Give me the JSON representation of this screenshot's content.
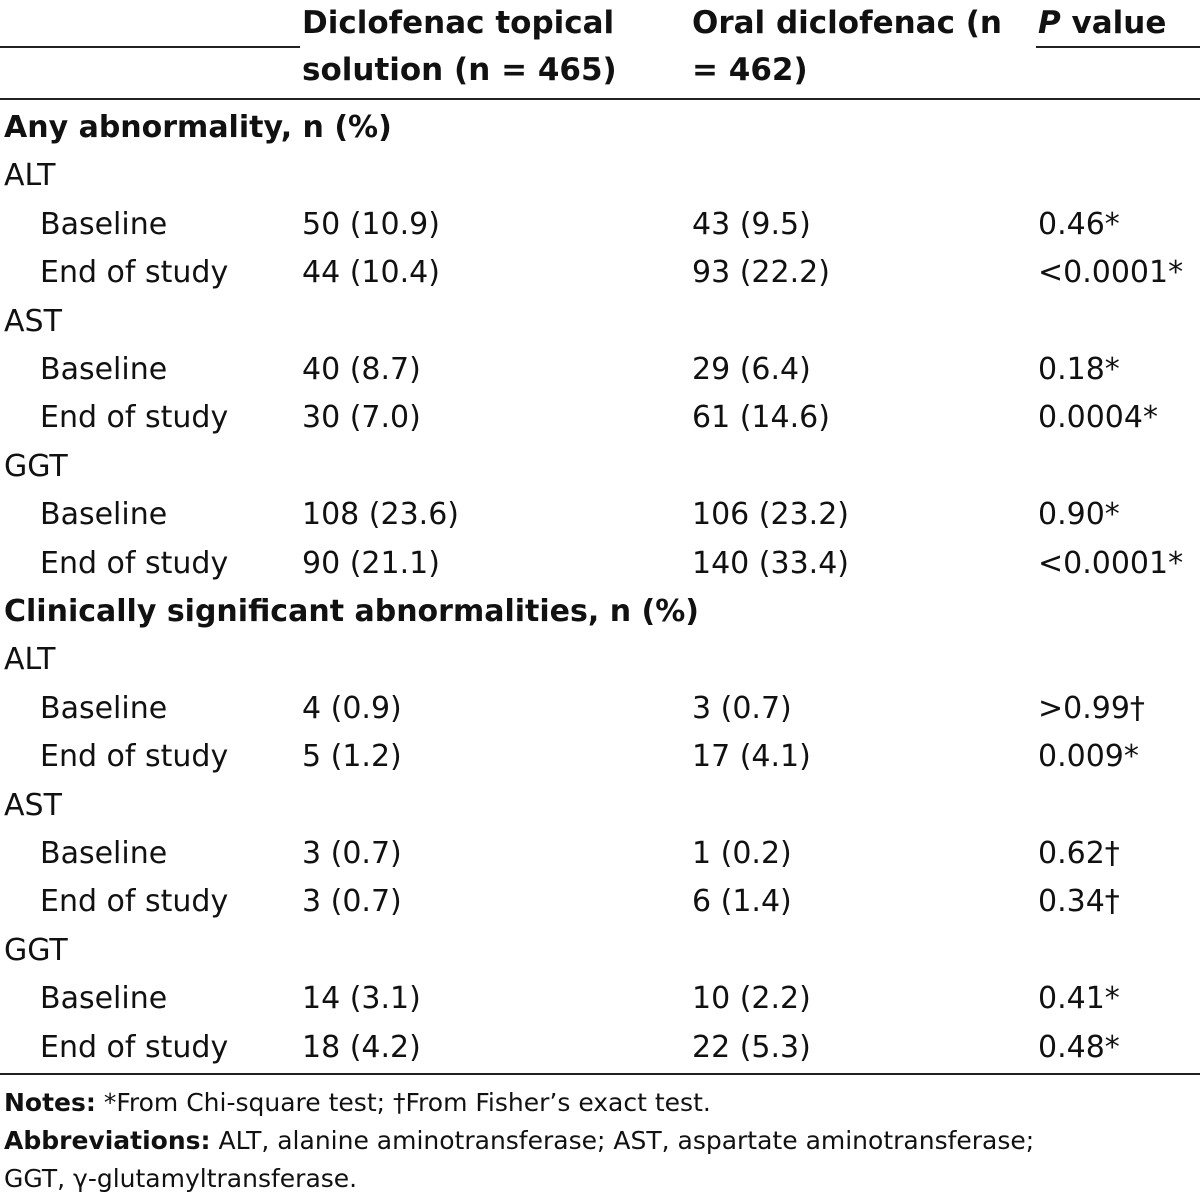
{
  "header": {
    "topical_line1": "Diclofenac topical",
    "topical_line2": "solution (n = 465)",
    "oral_line1": "Oral diclofenac (n",
    "oral_line2": "= 462)",
    "p_italic": "P",
    "p_rest": " value"
  },
  "sections": [
    {
      "title": "Any abnormality, n (%)",
      "groups": [
        {
          "name": "ALT",
          "rows": [
            {
              "label": "Baseline",
              "topical": "50 (10.9)",
              "oral": "43 (9.5)",
              "p": "0.46*"
            },
            {
              "label": "End of study",
              "topical": "44 (10.4)",
              "oral": "93 (22.2)",
              "p": "<0.0001*"
            }
          ]
        },
        {
          "name": "AST",
          "rows": [
            {
              "label": "Baseline",
              "topical": "40 (8.7)",
              "oral": "29 (6.4)",
              "p": "0.18*"
            },
            {
              "label": "End of study",
              "topical": "30 (7.0)",
              "oral": "61 (14.6)",
              "p": "0.0004*"
            }
          ]
        },
        {
          "name": "GGT",
          "rows": [
            {
              "label": "Baseline",
              "topical": "108 (23.6)",
              "oral": "106 (23.2)",
              "p": "0.90*"
            },
            {
              "label": "End of study",
              "topical": "90 (21.1)",
              "oral": "140 (33.4)",
              "p": "<0.0001*"
            }
          ]
        }
      ]
    },
    {
      "title": "Clinically significant abnormalities, n (%)",
      "groups": [
        {
          "name": "ALT",
          "rows": [
            {
              "label": "Baseline",
              "topical": "4 (0.9)",
              "oral": "3 (0.7)",
              "p": ">0.99†"
            },
            {
              "label": "End of study",
              "topical": "5 (1.2)",
              "oral": "17 (4.1)",
              "p": "0.009*"
            }
          ]
        },
        {
          "name": "AST",
          "rows": [
            {
              "label": "Baseline",
              "topical": "3 (0.7)",
              "oral": "1 (0.2)",
              "p": "0.62†"
            },
            {
              "label": "End of study",
              "topical": "3 (0.7)",
              "oral": "6 (1.4)",
              "p": "0.34†"
            }
          ]
        },
        {
          "name": "GGT",
          "rows": [
            {
              "label": "Baseline",
              "topical": "14 (3.1)",
              "oral": "10 (2.2)",
              "p": "0.41*"
            },
            {
              "label": "End of study",
              "topical": "18 (4.2)",
              "oral": "22 (5.3)",
              "p": "0.48*"
            }
          ]
        }
      ]
    }
  ],
  "footnotes": {
    "notes_label": "Notes:",
    "notes_text": " *From Chi-square test; †From Fisher’s exact test.",
    "abbr_label": "Abbreviations:",
    "abbr_text": " ALT, alanine aminotransferase; AST, aspartate aminotransferase;",
    "abbr_text2": "GGT, γ-glutamyltransferase."
  }
}
